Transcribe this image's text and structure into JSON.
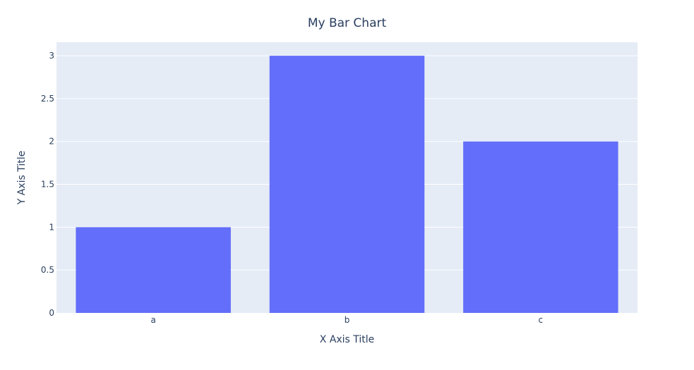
{
  "chart_data": {
    "type": "bar",
    "title": "My Bar Chart",
    "xlabel": "X Axis Title",
    "ylabel": "Y Axis Title",
    "categories": [
      "a",
      "b",
      "c"
    ],
    "values": [
      1,
      3,
      2
    ],
    "ylim": [
      0,
      3.157
    ],
    "yticks": [
      0,
      0.5,
      1,
      1.5,
      2,
      2.5,
      3
    ],
    "ytick_labels": [
      "0",
      "0.5",
      "1",
      "1.5",
      "2",
      "2.5",
      "3"
    ],
    "grid": true,
    "legend": "none",
    "colors": {
      "bar": "#636efa",
      "plot_background": "#e5ecf6",
      "grid": "#ffffff",
      "text": "#2a3f5f"
    }
  }
}
